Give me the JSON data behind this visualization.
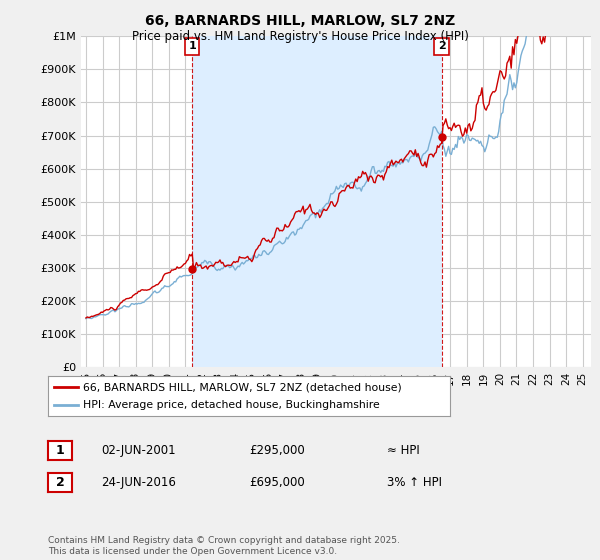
{
  "title": "66, BARNARDS HILL, MARLOW, SL7 2NZ",
  "subtitle": "Price paid vs. HM Land Registry's House Price Index (HPI)",
  "bg_color": "#f0f0f0",
  "plot_bg_color": "#ffffff",
  "grid_color": "#cccccc",
  "shade_color": "#ddeeff",
  "red_line_color": "#cc0000",
  "blue_line_color": "#7aafd4",
  "ylim": [
    0,
    1000000
  ],
  "yticks": [
    0,
    100000,
    200000,
    300000,
    400000,
    500000,
    600000,
    700000,
    800000,
    900000,
    1000000
  ],
  "ytick_labels": [
    "£0",
    "£100K",
    "£200K",
    "£300K",
    "£400K",
    "£500K",
    "£600K",
    "£700K",
    "£800K",
    "£900K",
    "£1M"
  ],
  "xlim_start": 1994.7,
  "xlim_end": 2025.5,
  "sale1_year": 2001.42,
  "sale1_price": 295000,
  "sale1_label": "1",
  "sale1_date": "02-JUN-2001",
  "sale1_price_str": "£295,000",
  "sale1_hpi_str": "≈ HPI",
  "sale2_year": 2016.48,
  "sale2_price": 695000,
  "sale2_label": "2",
  "sale2_date": "24-JUN-2016",
  "sale2_price_str": "£695,000",
  "sale2_hpi_str": "3% ↑ HPI",
  "legend_line1": "66, BARNARDS HILL, MARLOW, SL7 2NZ (detached house)",
  "legend_line2": "HPI: Average price, detached house, Buckinghamshire",
  "footer": "Contains HM Land Registry data © Crown copyright and database right 2025.\nThis data is licensed under the Open Government Licence v3.0."
}
